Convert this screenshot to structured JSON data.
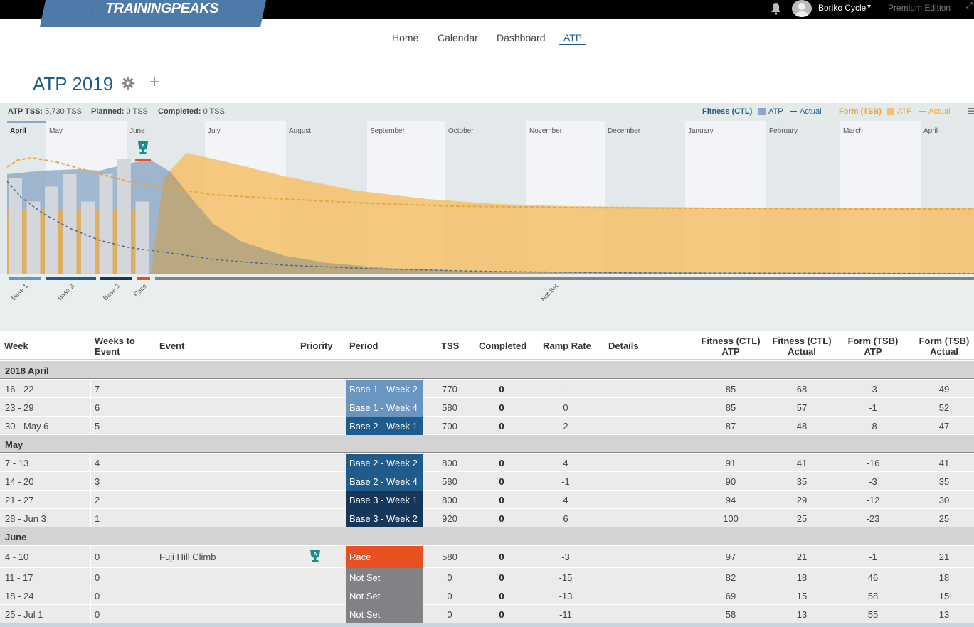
{
  "header": {
    "logo": "TRAININGPEAKS",
    "user_name": "Boriko Cycle",
    "edition": "Premium Edition",
    "icons": [
      "bell-icon",
      "avatar",
      "caret-down-icon",
      "expand-icon"
    ]
  },
  "nav": {
    "items": [
      "Home",
      "Calendar",
      "Dashboard",
      "ATP"
    ],
    "active": "ATP"
  },
  "page": {
    "title": "ATP 2019"
  },
  "summary": {
    "atp_tss_label": "ATP TSS:",
    "atp_tss_value": "5,730 TSS",
    "planned_label": "Planned:",
    "planned_value": "0 TSS",
    "completed_label": "Completed:",
    "completed_value": "0 TSS"
  },
  "legend": {
    "fitness_label": "Fitness (CTL)",
    "fitness_atp": "ATP",
    "fitness_actual": "Actual",
    "form_label": "Form (TSB)",
    "form_atp": "ATP",
    "form_actual": "Actual",
    "fitness_color": "#8ba9c6",
    "form_color": "#f6c06a"
  },
  "chart_data": {
    "type": "area",
    "months": [
      "April",
      "May",
      "June",
      "July",
      "August",
      "September",
      "October",
      "November",
      "December",
      "January",
      "February",
      "March",
      "April"
    ],
    "weekly_tss_bars": [
      770,
      580,
      700,
      800,
      580,
      800,
      920,
      580
    ],
    "periods": [
      {
        "name": "Base 1",
        "color": "#6a95c0"
      },
      {
        "name": "Base 2",
        "color": "#1f5c8c"
      },
      {
        "name": "Base 3",
        "color": "#17375a"
      },
      {
        "name": "Race",
        "color": "#e8511f"
      },
      {
        "name": "Not Set",
        "color": "#808285"
      }
    ],
    "event_marker": "A"
  },
  "table": {
    "headers": {
      "week": "Week",
      "weeks_to_event": [
        "Weeks to",
        "Event"
      ],
      "event": "Event",
      "priority": "Priority",
      "period": "Period",
      "tss": "TSS",
      "completed": "Completed",
      "ramp": "Ramp Rate",
      "details": "Details",
      "fit_atp": [
        "Fitness (CTL)",
        "ATP"
      ],
      "fit_act": [
        "Fitness (CTL)",
        "Actual"
      ],
      "form_atp": [
        "Form (TSB)",
        "ATP"
      ],
      "form_act": [
        "Form (TSB)",
        "Actual"
      ]
    },
    "groups": [
      "2018 April",
      "May",
      "June"
    ],
    "rows": [
      {
        "week": "16 - 22",
        "wte": "7",
        "event": "",
        "period": "Base 1 - Week 2",
        "pcolor": "#6a95c0",
        "tss": "770",
        "completed": "0",
        "ramp": "--",
        "fit_atp": "85",
        "fit_act": "68",
        "form_atp": "-3",
        "form_act": "49"
      },
      {
        "week": "23 - 29",
        "wte": "6",
        "event": "",
        "period": "Base 1 - Week 4",
        "pcolor": "#6a95c0",
        "tss": "580",
        "completed": "0",
        "ramp": "0",
        "fit_atp": "85",
        "fit_act": "57",
        "form_atp": "-1",
        "form_act": "52"
      },
      {
        "week": "30 - May 6",
        "wte": "5",
        "event": "",
        "period": "Base 2 - Week 1",
        "pcolor": "#1f5c8c",
        "tss": "700",
        "completed": "0",
        "ramp": "2",
        "fit_atp": "87",
        "fit_act": "48",
        "form_atp": "-8",
        "form_act": "47"
      },
      {
        "week": "7 - 13",
        "wte": "4",
        "event": "",
        "period": "Base 2 - Week 2",
        "pcolor": "#1f5c8c",
        "tss": "800",
        "completed": "0",
        "ramp": "4",
        "fit_atp": "91",
        "fit_act": "41",
        "form_atp": "-16",
        "form_act": "41"
      },
      {
        "week": "14 - 20",
        "wte": "3",
        "event": "",
        "period": "Base 2 - Week 4",
        "pcolor": "#1f5c8c",
        "tss": "580",
        "completed": "0",
        "ramp": "-1",
        "fit_atp": "90",
        "fit_act": "35",
        "form_atp": "-3",
        "form_act": "35"
      },
      {
        "week": "21 - 27",
        "wte": "2",
        "event": "",
        "period": "Base 3 - Week 1",
        "pcolor": "#17375a",
        "tss": "800",
        "completed": "0",
        "ramp": "4",
        "fit_atp": "94",
        "fit_act": "29",
        "form_atp": "-12",
        "form_act": "30"
      },
      {
        "week": "28 - Jun 3",
        "wte": "1",
        "event": "",
        "period": "Base 3 - Week 2",
        "pcolor": "#17375a",
        "tss": "920",
        "completed": "0",
        "ramp": "6",
        "fit_atp": "100",
        "fit_act": "25",
        "form_atp": "-23",
        "form_act": "25"
      },
      {
        "week": "4 - 10",
        "wte": "0",
        "event": "Fuji Hill Climb",
        "period": "Race",
        "pcolor": "#e8511f",
        "tss": "580",
        "completed": "0",
        "ramp": "-3",
        "fit_atp": "97",
        "fit_act": "21",
        "form_atp": "-1",
        "form_act": "21"
      },
      {
        "week": "11 - 17",
        "wte": "0",
        "event": "",
        "period": "Not Set",
        "pcolor": "#808285",
        "tss": "0",
        "completed": "0",
        "ramp": "-15",
        "fit_atp": "82",
        "fit_act": "18",
        "form_atp": "46",
        "form_act": "18"
      },
      {
        "week": "18 - 24",
        "wte": "0",
        "event": "",
        "period": "Not Set",
        "pcolor": "#808285",
        "tss": "0",
        "completed": "0",
        "ramp": "-13",
        "fit_atp": "69",
        "fit_act": "15",
        "form_atp": "58",
        "form_act": "15"
      },
      {
        "week": "25 - Jul 1",
        "wte": "0",
        "event": "",
        "period": "Not Set",
        "pcolor": "#808285",
        "tss": "0",
        "completed": "0",
        "ramp": "-11",
        "fit_atp": "58",
        "fit_act": "13",
        "form_atp": "55",
        "form_act": "13"
      }
    ]
  }
}
